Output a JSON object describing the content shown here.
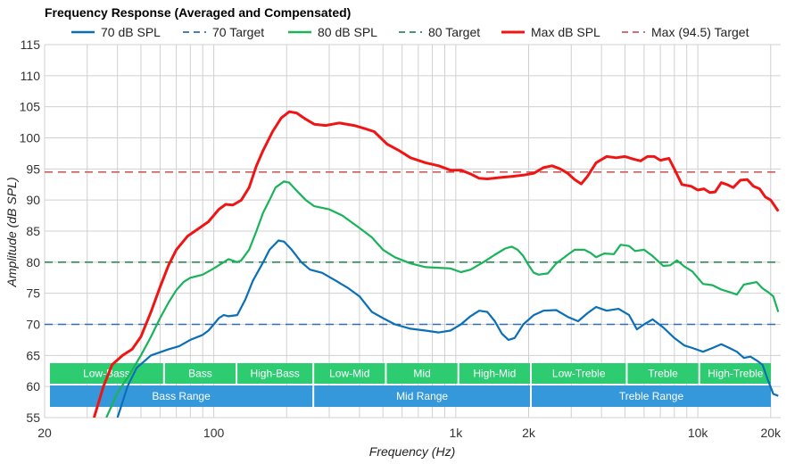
{
  "chart_data": {
    "type": "line",
    "title": "Frequency Response (Averaged and Compensated)",
    "xlabel": "Frequency (Hz)",
    "ylabel": "Amplitude (dB SPL)",
    "x_scale": "log",
    "xlim": [
      20,
      22000
    ],
    "ylim": [
      55,
      115
    ],
    "grid": true,
    "legend_position": "top",
    "x_ticks": [
      {
        "value": 20,
        "label": "20"
      },
      {
        "value": 100,
        "label": "100"
      },
      {
        "value": 1000,
        "label": "1k"
      },
      {
        "value": 2000,
        "label": "2k"
      },
      {
        "value": 10000,
        "label": "10k"
      },
      {
        "value": 20000,
        "label": "20k"
      }
    ],
    "y_ticks": [
      55,
      60,
      65,
      70,
      75,
      80,
      85,
      90,
      95,
      100,
      105,
      110,
      115
    ],
    "series": [
      {
        "name": "70 dB SPL",
        "color": "#0b6fb8",
        "style": "solid",
        "points": [
          [
            40,
            55
          ],
          [
            44,
            60
          ],
          [
            48,
            63
          ],
          [
            55,
            65
          ],
          [
            65,
            66
          ],
          [
            72,
            66.5
          ],
          [
            80,
            67.5
          ],
          [
            90,
            68.3
          ],
          [
            95,
            69
          ],
          [
            100,
            70
          ],
          [
            105,
            71
          ],
          [
            110,
            71.5
          ],
          [
            115,
            71.3
          ],
          [
            125,
            71.5
          ],
          [
            135,
            74
          ],
          [
            145,
            77
          ],
          [
            160,
            80
          ],
          [
            170,
            82
          ],
          [
            185,
            83.5
          ],
          [
            195,
            83.3
          ],
          [
            210,
            82
          ],
          [
            230,
            80
          ],
          [
            250,
            78.8
          ],
          [
            280,
            78.3
          ],
          [
            320,
            77
          ],
          [
            360,
            75.8
          ],
          [
            400,
            74.5
          ],
          [
            450,
            72
          ],
          [
            500,
            71
          ],
          [
            560,
            70
          ],
          [
            650,
            69.3
          ],
          [
            750,
            69
          ],
          [
            850,
            68.7
          ],
          [
            950,
            69
          ],
          [
            1050,
            70
          ],
          [
            1150,
            71.3
          ],
          [
            1250,
            72.2
          ],
          [
            1350,
            72
          ],
          [
            1450,
            70.5
          ],
          [
            1550,
            68.5
          ],
          [
            1650,
            67.5
          ],
          [
            1750,
            67.8
          ],
          [
            1900,
            70
          ],
          [
            2100,
            71.5
          ],
          [
            2300,
            72.2
          ],
          [
            2600,
            72.3
          ],
          [
            2900,
            71.2
          ],
          [
            3200,
            70.5
          ],
          [
            3500,
            71.8
          ],
          [
            3800,
            72.8
          ],
          [
            4200,
            72.2
          ],
          [
            4700,
            72.5
          ],
          [
            5200,
            71.5
          ],
          [
            5600,
            69.2
          ],
          [
            6000,
            70
          ],
          [
            6500,
            70.8
          ],
          [
            7200,
            69.5
          ],
          [
            8000,
            67.8
          ],
          [
            8800,
            66.6
          ],
          [
            9500,
            66.2
          ],
          [
            10500,
            65.6
          ],
          [
            11500,
            66.2
          ],
          [
            12500,
            66.8
          ],
          [
            13500,
            66.2
          ],
          [
            14500,
            65.6
          ],
          [
            15500,
            64.6
          ],
          [
            16500,
            64.8
          ],
          [
            17500,
            64.2
          ],
          [
            18500,
            63.5
          ],
          [
            19500,
            61
          ],
          [
            20500,
            58.8
          ],
          [
            21500,
            58.5
          ]
        ]
      },
      {
        "name": "70 Target",
        "color": "#2f6fb0",
        "style": "dashed",
        "points": [
          [
            20,
            70
          ],
          [
            22000,
            70
          ]
        ]
      },
      {
        "name": "80 dB SPL",
        "color": "#1ab35a",
        "style": "solid",
        "points": [
          [
            36,
            55
          ],
          [
            40,
            59
          ],
          [
            45,
            62
          ],
          [
            50,
            65
          ],
          [
            55,
            68
          ],
          [
            60,
            71
          ],
          [
            65,
            73.5
          ],
          [
            70,
            75.5
          ],
          [
            75,
            76.8
          ],
          [
            80,
            77.5
          ],
          [
            90,
            78
          ],
          [
            100,
            79
          ],
          [
            110,
            80
          ],
          [
            115,
            80.5
          ],
          [
            125,
            80
          ],
          [
            130,
            80.3
          ],
          [
            140,
            82
          ],
          [
            150,
            85
          ],
          [
            160,
            88
          ],
          [
            170,
            90
          ],
          [
            180,
            92
          ],
          [
            195,
            93
          ],
          [
            205,
            92.8
          ],
          [
            220,
            91.5
          ],
          [
            240,
            90
          ],
          [
            260,
            89
          ],
          [
            300,
            88.5
          ],
          [
            340,
            87.5
          ],
          [
            400,
            85.5
          ],
          [
            450,
            84
          ],
          [
            500,
            82
          ],
          [
            560,
            80.8
          ],
          [
            650,
            79.8
          ],
          [
            750,
            79.2
          ],
          [
            850,
            79.1
          ],
          [
            950,
            79
          ],
          [
            1050,
            78.4
          ],
          [
            1150,
            78.8
          ],
          [
            1300,
            80
          ],
          [
            1450,
            81.2
          ],
          [
            1600,
            82.2
          ],
          [
            1700,
            82.5
          ],
          [
            1800,
            82
          ],
          [
            1900,
            81
          ],
          [
            2000,
            79.5
          ],
          [
            2100,
            78.3
          ],
          [
            2200,
            78
          ],
          [
            2400,
            78.2
          ],
          [
            2600,
            79.8
          ],
          [
            2900,
            81.2
          ],
          [
            3100,
            82
          ],
          [
            3400,
            82
          ],
          [
            3600,
            81.5
          ],
          [
            3800,
            80.8
          ],
          [
            4100,
            81.4
          ],
          [
            4500,
            81.3
          ],
          [
            4800,
            82.8
          ],
          [
            5200,
            82.6
          ],
          [
            5500,
            81.8
          ],
          [
            6000,
            82
          ],
          [
            6500,
            81
          ],
          [
            7200,
            79.4
          ],
          [
            7700,
            79.5
          ],
          [
            8200,
            80.3
          ],
          [
            8800,
            79.3
          ],
          [
            9500,
            78.5
          ],
          [
            10500,
            76.5
          ],
          [
            11500,
            76.3
          ],
          [
            12500,
            75.6
          ],
          [
            13500,
            75.2
          ],
          [
            14500,
            74.8
          ],
          [
            15500,
            76.4
          ],
          [
            16500,
            76.6
          ],
          [
            17500,
            76.8
          ],
          [
            18500,
            75.8
          ],
          [
            19500,
            75.2
          ],
          [
            20500,
            74.5
          ],
          [
            21500,
            72
          ]
        ]
      },
      {
        "name": "80 Target",
        "color": "#2e8b57",
        "style": "dashed",
        "points": [
          [
            20,
            80
          ],
          [
            22000,
            80
          ]
        ]
      },
      {
        "name": "Max dB SPL",
        "color": "#f01515",
        "style": "solid",
        "points": [
          [
            32,
            55
          ],
          [
            35,
            60
          ],
          [
            38,
            63.5
          ],
          [
            42,
            65
          ],
          [
            46,
            66
          ],
          [
            50,
            68
          ],
          [
            55,
            72
          ],
          [
            60,
            76
          ],
          [
            65,
            79.5
          ],
          [
            70,
            82
          ],
          [
            78,
            84.2
          ],
          [
            85,
            85.2
          ],
          [
            95,
            86.5
          ],
          [
            105,
            88.5
          ],
          [
            112,
            89.3
          ],
          [
            120,
            89.2
          ],
          [
            125,
            89.6
          ],
          [
            130,
            90
          ],
          [
            140,
            92
          ],
          [
            150,
            95.5
          ],
          [
            160,
            98
          ],
          [
            175,
            101
          ],
          [
            190,
            103.2
          ],
          [
            205,
            104.2
          ],
          [
            220,
            104
          ],
          [
            240,
            103
          ],
          [
            260,
            102.2
          ],
          [
            290,
            102
          ],
          [
            330,
            102.4
          ],
          [
            380,
            102
          ],
          [
            420,
            101.5
          ],
          [
            460,
            101
          ],
          [
            520,
            99
          ],
          [
            580,
            98
          ],
          [
            650,
            96.8
          ],
          [
            750,
            96
          ],
          [
            850,
            95.5
          ],
          [
            950,
            94.8
          ],
          [
            1050,
            94.8
          ],
          [
            1150,
            94.2
          ],
          [
            1250,
            93.5
          ],
          [
            1350,
            93.4
          ],
          [
            1500,
            93.6
          ],
          [
            1700,
            93.8
          ],
          [
            1900,
            94
          ],
          [
            2100,
            94.3
          ],
          [
            2300,
            95.2
          ],
          [
            2500,
            95.5
          ],
          [
            2700,
            95
          ],
          [
            2900,
            94.3
          ],
          [
            3100,
            93.3
          ],
          [
            3300,
            92.6
          ],
          [
            3500,
            93.8
          ],
          [
            3800,
            96
          ],
          [
            4200,
            97
          ],
          [
            4600,
            96.8
          ],
          [
            5000,
            97
          ],
          [
            5400,
            96.6
          ],
          [
            5800,
            96.3
          ],
          [
            6200,
            97
          ],
          [
            6600,
            97
          ],
          [
            7000,
            96.4
          ],
          [
            7600,
            96.7
          ],
          [
            8000,
            95
          ],
          [
            8600,
            92.5
          ],
          [
            9400,
            92.2
          ],
          [
            10000,
            91.6
          ],
          [
            10600,
            91.8
          ],
          [
            11200,
            91.2
          ],
          [
            11800,
            91.3
          ],
          [
            12500,
            92.8
          ],
          [
            13200,
            92.5
          ],
          [
            14000,
            92
          ],
          [
            15000,
            93.2
          ],
          [
            16000,
            93.3
          ],
          [
            17000,
            92.2
          ],
          [
            18000,
            91.8
          ],
          [
            19000,
            90.5
          ],
          [
            20000,
            90
          ],
          [
            21000,
            88.8
          ],
          [
            21500,
            88.2
          ]
        ]
      },
      {
        "name": "Max (94.5) Target",
        "color": "#cd5c5c",
        "style": "dashed",
        "points": [
          [
            20,
            94.5
          ],
          [
            22000,
            94.5
          ]
        ]
      }
    ],
    "bands": {
      "top_row": [
        {
          "label": "Low-Bass",
          "from": 20,
          "to": 60
        },
        {
          "label": "Bass",
          "from": 60,
          "to": 120
        },
        {
          "label": "High-Bass",
          "from": 120,
          "to": 250
        },
        {
          "label": "Low-Mid",
          "from": 250,
          "to": 500
        },
        {
          "label": "Mid",
          "from": 500,
          "to": 1000
        },
        {
          "label": "High-Mid",
          "from": 1000,
          "to": 2000
        },
        {
          "label": "Low-Treble",
          "from": 2000,
          "to": 5000
        },
        {
          "label": "Treble",
          "from": 5000,
          "to": 10000
        },
        {
          "label": "High-Treble",
          "from": 10000,
          "to": 20000
        }
      ],
      "bottom_row": [
        {
          "label": "Bass Range",
          "from": 20,
          "to": 250
        },
        {
          "label": "Mid Range",
          "from": 250,
          "to": 2000
        },
        {
          "label": "Treble Range",
          "from": 2000,
          "to": 20000
        }
      ],
      "top_color": "#2ecc71",
      "bottom_color": "#3498db"
    }
  }
}
